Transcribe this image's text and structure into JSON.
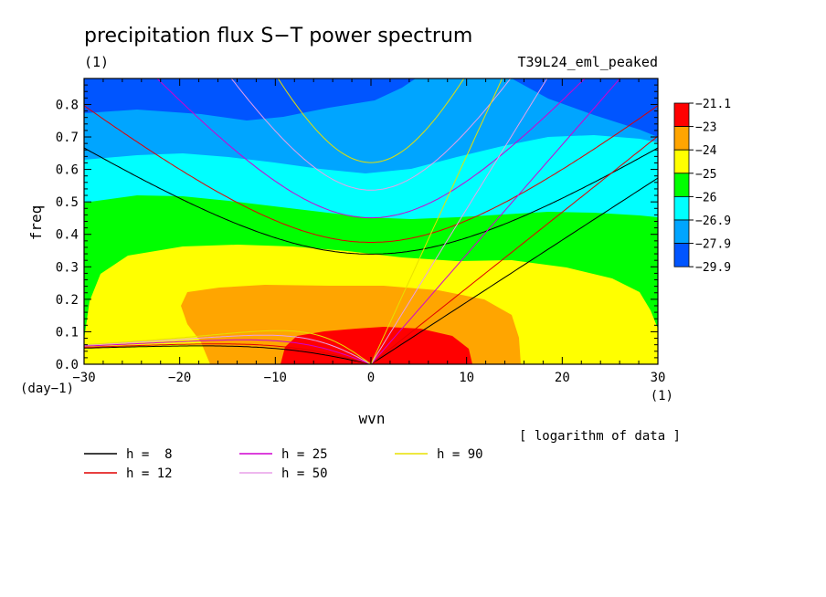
{
  "chart_data": {
    "type": "heatmap",
    "title": "precipitation flux S−T power spectrum",
    "units_label": "(1)",
    "experiment": "T39L24_eml_peaked",
    "xlabel": "wvn",
    "ylabel": "freq",
    "x_unit": "(1)",
    "y_unit": "(day−1)",
    "xlim": [
      -30,
      30
    ],
    "ylim": [
      0.0,
      0.88
    ],
    "x_ticks": [
      {
        "v": -30,
        "label": "−30"
      },
      {
        "v": -20,
        "label": "−20"
      },
      {
        "v": -10,
        "label": "−10"
      },
      {
        "v": 0,
        "label": "0"
      },
      {
        "v": 10,
        "label": "10"
      },
      {
        "v": 20,
        "label": "20"
      },
      {
        "v": 30,
        "label": "30"
      }
    ],
    "y_ticks": [
      {
        "v": 0.0,
        "label": "0.0"
      },
      {
        "v": 0.1,
        "label": "0.1"
      },
      {
        "v": 0.2,
        "label": "0.2"
      },
      {
        "v": 0.3,
        "label": "0.3"
      },
      {
        "v": 0.4,
        "label": "0.4"
      },
      {
        "v": 0.5,
        "label": "0.5"
      },
      {
        "v": 0.6,
        "label": "0.6"
      },
      {
        "v": 0.7,
        "label": "0.7"
      },
      {
        "v": 0.8,
        "label": "0.8"
      }
    ],
    "note": "[ logarithm of data ]",
    "colorbar": {
      "levels": [
        "−21.1",
        "−23",
        "−24",
        "−25",
        "−26",
        "−26.9",
        "−27.9",
        "−29.9"
      ],
      "colors": [
        "#ff0000",
        "#ffa500",
        "#ffff00",
        "#00ff00",
        "#00ffff",
        "#00a5ff",
        "#0055ff"
      ]
    },
    "contour_fills": [
      {
        "level": "−29.9",
        "color": "#0055ff"
      },
      {
        "level": "−27.9",
        "color": "#00a5ff"
      },
      {
        "level": "−26.9",
        "color": "#00ffff"
      },
      {
        "level": "−26",
        "color": "#00ff00"
      },
      {
        "level": "−25",
        "color": "#ffff00"
      },
      {
        "level": "−24",
        "color": "#ffa500"
      },
      {
        "level": "−23",
        "color": "#ff0000"
      }
    ],
    "dispersion_curves": [
      {
        "label": "h =  8",
        "h": 8,
        "color": "#000000"
      },
      {
        "label": "h = 12",
        "h": 12,
        "color": "#e00000"
      },
      {
        "label": "h = 25",
        "h": 25,
        "color": "#d000d0"
      },
      {
        "label": "h = 50",
        "h": 50,
        "color": "#e8a0e8"
      },
      {
        "label": "h = 90",
        "h": 90,
        "color": "#e8e000"
      }
    ]
  }
}
